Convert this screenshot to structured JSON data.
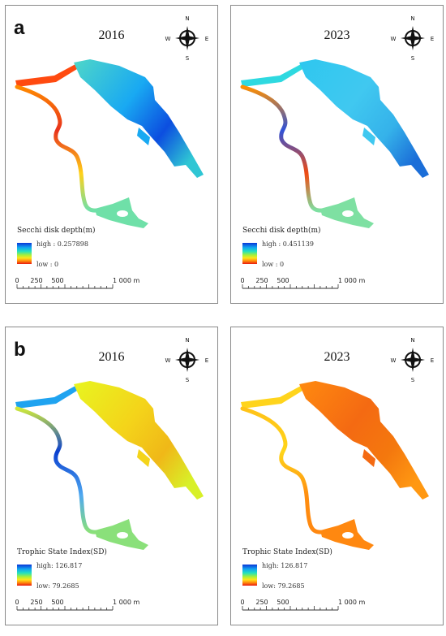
{
  "panels": [
    {
      "label": "a",
      "year": "2016",
      "legend_title": "Secchi disk depth(m)",
      "high": "high : 0.257898",
      "low": "low : 0",
      "colors": {
        "lake_west": "#4fd7c8",
        "lake_mid": "#19a9f2",
        "lake_east": "#0c4ee0",
        "lake_tail": "#2fc6d4",
        "channel_top": "#ff8a00",
        "channel_mid": "#e8321c",
        "channel_low": "#ffd11a",
        "south": "#6fe0a8",
        "west_arm": "#ff4a10"
      }
    },
    {
      "label": "",
      "year": "2023",
      "legend_title": "Secchi disk depth(m)",
      "high": "high : 0.451139",
      "low": "low : 0",
      "colors": {
        "lake_west": "#2ec7ef",
        "lake_mid": "#40c8f0",
        "lake_east": "#35b2ea",
        "lake_tail": "#1b6ed8",
        "channel_top": "#ff8f00",
        "channel_mid": "#2f52d8",
        "channel_low": "#f04b12",
        "south": "#7ee0a2",
        "west_arm": "#2ed9e0"
      }
    },
    {
      "label": "b",
      "year": "2016",
      "legend_title": "Trophic State Index(SD)",
      "high": "high: 126.817",
      "low": "low: 79.2685",
      "colors": {
        "lake_west": "#e8f520",
        "lake_mid": "#f4d41a",
        "lake_east": "#f0b818",
        "lake_tail": "#d8f028",
        "channel_top": "#cfe93a",
        "channel_mid": "#0a3fd0",
        "channel_low": "#4fa8f0",
        "south": "#8ae07a",
        "west_arm": "#1fa3f0"
      }
    },
    {
      "label": "",
      "year": "2023",
      "legend_title": "Trophic State Index(SD)",
      "high": "high: 126.817",
      "low": "low: 79.2685",
      "colors": {
        "lake_west": "#ff8a10",
        "lake_mid": "#f46a12",
        "lake_east": "#f4780e",
        "lake_tail": "#ff9812",
        "channel_top": "#ffc218",
        "channel_mid": "#ffd51a",
        "channel_low": "#ff8e10",
        "south": "#ff8810",
        "west_arm": "#ffd41c"
      }
    }
  ],
  "compass": {
    "n": "N",
    "s": "S",
    "e": "E",
    "w": "W"
  },
  "scale": {
    "t0": "0",
    "t1": "250",
    "t2": "500",
    "t3": "1 000 m"
  }
}
